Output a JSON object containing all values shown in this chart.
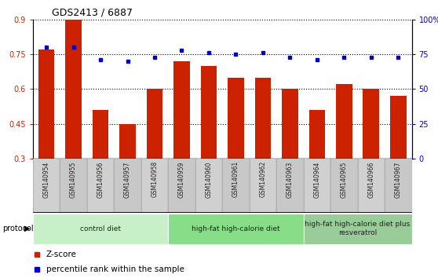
{
  "title": "GDS2413 / 6887",
  "categories": [
    "GSM140954",
    "GSM140955",
    "GSM140956",
    "GSM140957",
    "GSM140958",
    "GSM140959",
    "GSM140960",
    "GSM140961",
    "GSM140962",
    "GSM140963",
    "GSM140964",
    "GSM140965",
    "GSM140966",
    "GSM140967"
  ],
  "zscore": [
    0.77,
    0.9,
    0.51,
    0.45,
    0.6,
    0.72,
    0.7,
    0.65,
    0.65,
    0.6,
    0.51,
    0.62,
    0.6,
    0.57
  ],
  "percentile": [
    80,
    80,
    71,
    70,
    73,
    78,
    76,
    75,
    76,
    73,
    71,
    73,
    73,
    73
  ],
  "bar_color": "#cc2200",
  "dot_color": "#0000cc",
  "ylim_left": [
    0.3,
    0.9
  ],
  "ylim_right": [
    0,
    100
  ],
  "yticks_left": [
    0.3,
    0.45,
    0.6,
    0.75,
    0.9
  ],
  "ytick_labels_left": [
    "0.3",
    "0.45",
    "0.6",
    "0.75",
    "0.9"
  ],
  "yticks_right": [
    0,
    25,
    50,
    75,
    100
  ],
  "ytick_labels_right": [
    "0",
    "25",
    "50",
    "75",
    "100%"
  ],
  "groups": [
    {
      "label": "control diet",
      "start": 0,
      "end": 4,
      "color": "#c8f0c8"
    },
    {
      "label": "high-fat high-calorie diet",
      "start": 5,
      "end": 9,
      "color": "#88dd88"
    },
    {
      "label": "high-fat high-calorie diet plus\nresveratrol",
      "start": 10,
      "end": 13,
      "color": "#99cc99"
    }
  ],
  "protocol_label": "protocol",
  "legend_zscore": "Z-score",
  "legend_percentile": "percentile rank within the sample",
  "tick_bg_color": "#d0d0d0",
  "plot_bg": "#ffffff",
  "fig_bg": "#ffffff"
}
